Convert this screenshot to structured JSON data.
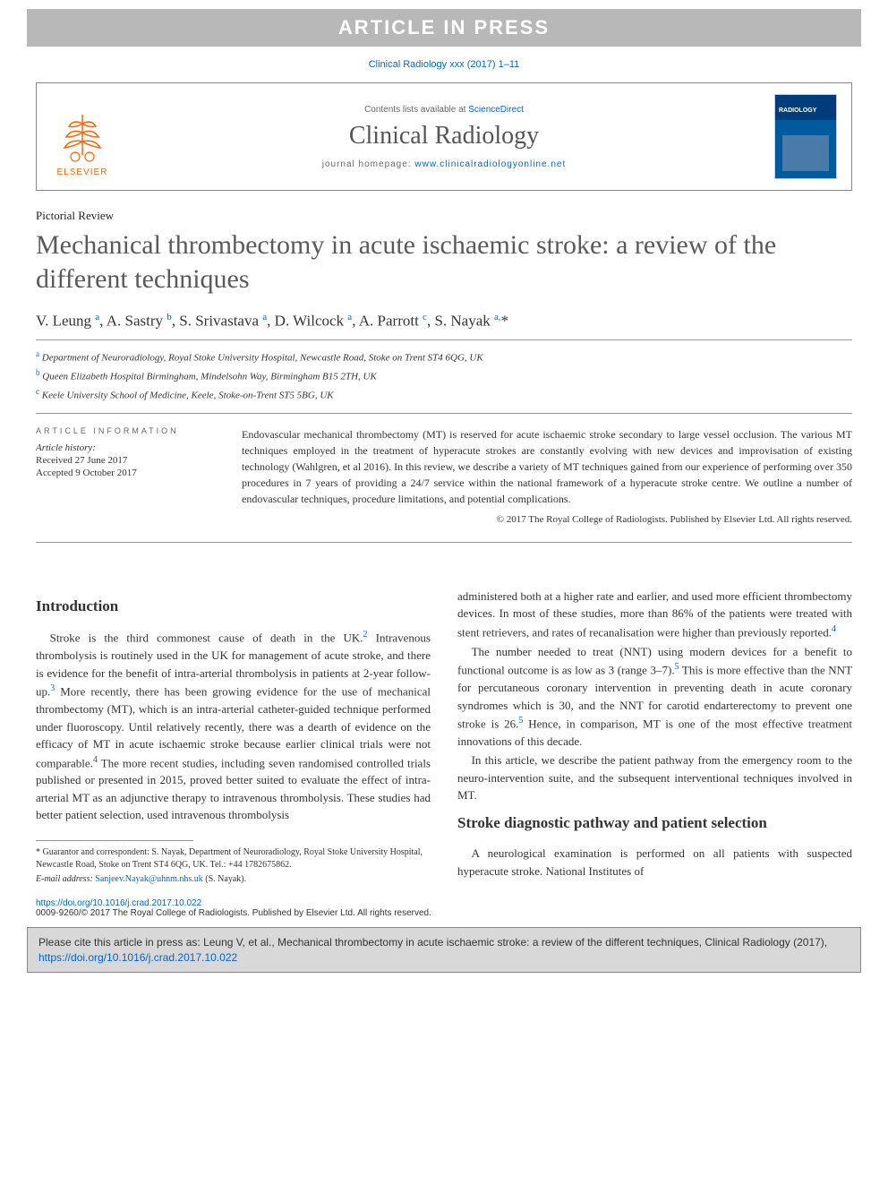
{
  "banner": "ARTICLE IN PRESS",
  "citation_top": "Clinical Radiology xxx (2017) 1–11",
  "header": {
    "contents_prefix": "Contents lists available at ",
    "contents_link": "ScienceDirect",
    "journal": "Clinical Radiology",
    "homepage_prefix": "journal homepage: ",
    "homepage_url": "www.clinicalradiologyonline.net",
    "publisher": "ELSEVIER"
  },
  "article": {
    "type": "Pictorial Review",
    "title": "Mechanical thrombectomy in acute ischaemic stroke: a review of the different techniques",
    "authors_html": "V. Leung <sup>a</sup>, A. Sastry <sup>b</sup>, S. Srivastava <sup>a</sup>, D. Wilcock <sup>a</sup>, A. Parrott <sup>c</sup>, S. Nayak <sup>a,</sup><span class='corr'>*</span>",
    "affiliations": [
      {
        "sup": "a",
        "text": "Department of Neuroradiology, Royal Stoke University Hospital, Newcastle Road, Stoke on Trent ST4 6QG, UK"
      },
      {
        "sup": "b",
        "text": "Queen Elizabeth Hospital Birmingham, Mindelsohn Way, Birmingham B15 2TH, UK"
      },
      {
        "sup": "c",
        "text": "Keele University School of Medicine, Keele, Stoke-on-Trent ST5 5BG, UK"
      }
    ],
    "info_heading": "ARTICLE INFORMATION",
    "history_label": "Article history:",
    "received": "Received 27 June 2017",
    "accepted": "Accepted 9 October 2017",
    "abstract": "Endovascular mechanical thrombectomy (MT) is reserved for acute ischaemic stroke secondary to large vessel occlusion. The various MT techniques employed in the treatment of hyperacute strokes are constantly evolving with new devices and improvisation of existing technology (Wahlgren, et al 2016). In this review, we describe a variety of MT techniques gained from our experience of performing over 350 procedures in 7 years of providing a 24/7 service within the national framework of a hyperacute stroke centre. We outline a number of endovascular techniques, procedure limitations, and potential complications.",
    "copyright": "© 2017 The Royal College of Radiologists. Published by Elsevier Ltd. All rights reserved."
  },
  "body": {
    "intro_heading": "Introduction",
    "p1_a": "Stroke is the third commonest cause of death in the UK.",
    "p1_b": " Intravenous thrombolysis is routinely used in the UK for management of acute stroke, and there is evidence for the benefit of intra-arterial thrombolysis in patients at 2-year follow-up.",
    "p1_c": " More recently, there has been growing evidence for the use of mechanical thrombectomy (MT), which is an intra-arterial catheter-guided technique performed under fluoroscopy. Until relatively recently, there was a dearth of evidence on the efficacy of MT in acute ischaemic stroke because earlier clinical trials were not comparable.",
    "p1_d": " The more recent studies, including seven randomised controlled trials published or presented in 2015, proved better suited to evaluate the effect of intra-arterial MT as an adjunctive therapy to intravenous thrombolysis. These studies had better patient selection, used intravenous thrombolysis",
    "p2": "administered both at a higher rate and earlier, and used more efficient thrombectomy devices. In most of these studies, more than 86% of the patients were treated with stent retrievers, and rates of recanalisation were higher than previously reported.",
    "p3_a": "The number needed to treat (NNT) using modern devices for a benefit to functional outcome is as low as 3 (range 3–7).",
    "p3_b": " This is more effective than the NNT for percutaneous coronary intervention in preventing death in acute coronary syndromes which is 30, and the NNT for carotid endarterectomy to prevent one stroke is 26.",
    "p3_c": " Hence, in comparison, MT is one of the most effective treatment innovations of this decade.",
    "p4": "In this article, we describe the patient pathway from the emergency room to the neuro-intervention suite, and the subsequent interventional techniques involved in MT.",
    "sec2_heading": "Stroke diagnostic pathway and patient selection",
    "p5": "A neurological examination is performed on all patients with suspected hyperacute stroke. National Institutes of"
  },
  "footnote": {
    "guarantor": "* Guarantor and correspondent: S. Nayak, Department of Neuroradiology, Royal Stoke University Hospital, Newcastle Road, Stoke on Trent ST4 6QG, UK. Tel.: +44 1782675862.",
    "email_label": "E-mail address: ",
    "email": "Sanjeev.Nayak@uhnm.nhs.uk",
    "email_suffix": " (S. Nayak)."
  },
  "doi": {
    "url": "https://doi.org/10.1016/j.crad.2017.10.022",
    "issn_line": "0009-9260/© 2017 The Royal College of Radiologists. Published by Elsevier Ltd. All rights reserved."
  },
  "cite_box": {
    "text": "Please cite this article in press as: Leung V, et al., Mechanical thrombectomy in acute ischaemic stroke: a review of the different techniques, Clinical Radiology (2017), ",
    "url": "https://doi.org/10.1016/j.crad.2017.10.022"
  },
  "refs": {
    "r2": "2",
    "r3": "3",
    "r4": "4",
    "r5": "5"
  }
}
